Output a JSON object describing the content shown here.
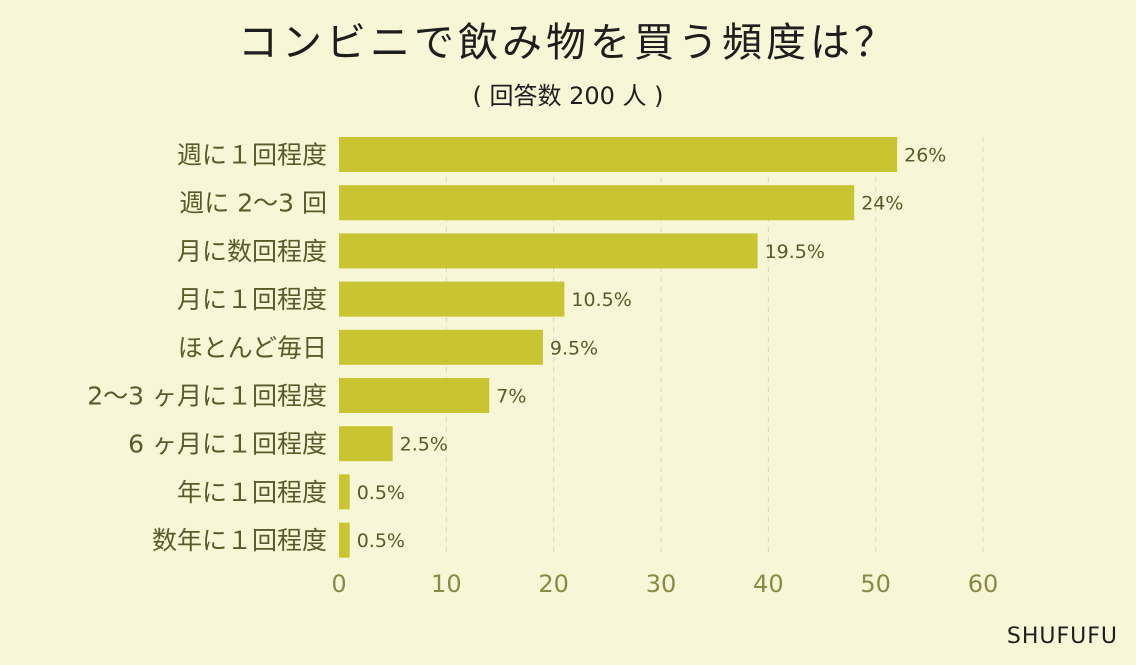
{
  "chart_data": {
    "type": "bar",
    "orientation": "horizontal",
    "title": "コンビニで飲み物を買う頻度は？",
    "subtitle": "( 回答数 200 人 )",
    "categories": [
      "週に１回程度",
      "週に 2〜3 回",
      "月に数回程度",
      "月に１回程度",
      "ほとんど毎日",
      "2〜3 ヶ月に１回程度",
      "6 ヶ月に１回程度",
      "年に１回程度",
      "数年に１回程度"
    ],
    "values": [
      52,
      48,
      39,
      21,
      19,
      14,
      5,
      1,
      1
    ],
    "data_labels": [
      "26%",
      "24%",
      "19.5%",
      "10.5%",
      "9.5%",
      "7%",
      "2.5%",
      "0.5%",
      "0.5%"
    ],
    "xlim": [
      0,
      60
    ],
    "xticks": [
      "0",
      "10",
      "20",
      "30",
      "40",
      "50",
      "60"
    ],
    "grid": "vertical dashed",
    "legend": "none",
    "colors": {
      "background": "#f7f6d6",
      "bar": "#c9c432",
      "label": "#5a5a2a",
      "tick": "#8a8a45",
      "grid": "#d9d8bd"
    }
  },
  "brand": "SHUFUFU"
}
